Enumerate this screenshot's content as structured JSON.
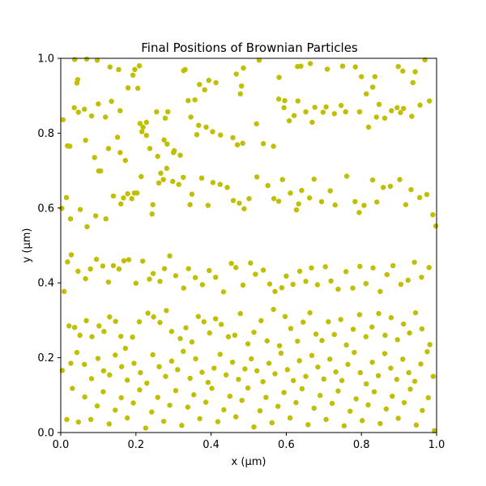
{
  "chart_data": {
    "type": "scatter",
    "title": "Final Positions of Brownian Particles",
    "xlabel": "x (µm)",
    "ylabel": "y (µm)",
    "xlim": [
      0,
      1
    ],
    "ylim": [
      0,
      1
    ],
    "xticks": [
      "0.0",
      "0.2",
      "0.4",
      "0.6",
      "0.8",
      "1.0"
    ],
    "yticks": [
      "0.0",
      "0.2",
      "0.4",
      "0.6",
      "0.8",
      "1.0"
    ],
    "xtick_values": [
      0,
      0.2,
      0.4,
      0.6,
      0.8,
      1.0
    ],
    "ytick_values": [
      0,
      0.2,
      0.4,
      0.6,
      0.8,
      1.0
    ],
    "grid": false,
    "marker_color": "#bfbf00",
    "points": [
      [
        0.006,
        0.836
      ],
      [
        0.037,
        0.997
      ],
      [
        0.043,
        0.934
      ],
      [
        0.045,
        0.943
      ],
      [
        0.069,
        0.998
      ],
      [
        0.097,
        0.995
      ],
      [
        0.131,
        0.977
      ],
      [
        0.154,
        0.97
      ],
      [
        0.192,
        0.955
      ],
      [
        0.197,
        0.97
      ],
      [
        0.209,
        0.98
      ],
      [
        0.036,
        0.868
      ],
      [
        0.047,
        0.856
      ],
      [
        0.063,
        0.864
      ],
      [
        0.082,
        0.846
      ],
      [
        0.1,
        0.878
      ],
      [
        0.119,
        0.843
      ],
      [
        0.135,
        0.885
      ],
      [
        0.158,
        0.86
      ],
      [
        0.179,
        0.921
      ],
      [
        0.205,
        0.92
      ],
      [
        0.211,
        0.826
      ],
      [
        0.228,
        0.829
      ],
      [
        0.255,
        0.857
      ],
      [
        0.278,
        0.84
      ],
      [
        0.285,
        0.857
      ],
      [
        0.327,
        0.967
      ],
      [
        0.331,
        0.97
      ],
      [
        0.369,
        0.93
      ],
      [
        0.383,
        0.916
      ],
      [
        0.394,
        0.941
      ],
      [
        0.413,
        0.935
      ],
      [
        0.467,
        0.958
      ],
      [
        0.486,
        0.974
      ],
      [
        0.481,
        0.926
      ],
      [
        0.478,
        0.905
      ],
      [
        0.528,
        0.995
      ],
      [
        0.581,
        0.949
      ],
      [
        0.58,
        0.891
      ],
      [
        0.596,
        0.887
      ],
      [
        0.63,
        0.978
      ],
      [
        0.639,
        0.979
      ],
      [
        0.664,
        0.986
      ],
      [
        0.709,
        0.971
      ],
      [
        0.75,
        0.979
      ],
      [
        0.784,
        0.977
      ],
      [
        0.8,
        0.951
      ],
      [
        0.813,
        0.905
      ],
      [
        0.83,
        0.923
      ],
      [
        0.836,
        0.951
      ],
      [
        0.898,
        0.978
      ],
      [
        0.91,
        0.966
      ],
      [
        0.969,
        0.996
      ],
      [
        0.943,
        0.964
      ],
      [
        0.937,
        0.935
      ],
      [
        0.018,
        0.766
      ],
      [
        0.024,
        0.765
      ],
      [
        0.066,
        0.781
      ],
      [
        0.09,
        0.735
      ],
      [
        0.101,
        0.699
      ],
      [
        0.106,
        0.699
      ],
      [
        0.127,
        0.759
      ],
      [
        0.151,
        0.789
      ],
      [
        0.158,
        0.748
      ],
      [
        0.172,
        0.727
      ],
      [
        0.216,
        0.804
      ],
      [
        0.219,
        0.816
      ],
      [
        0.228,
        0.794
      ],
      [
        0.237,
        0.759
      ],
      [
        0.258,
        0.738
      ],
      [
        0.275,
        0.782
      ],
      [
        0.283,
        0.771
      ],
      [
        0.3,
        0.748
      ],
      [
        0.302,
        0.753
      ],
      [
        0.318,
        0.741
      ],
      [
        0.339,
        0.887
      ],
      [
        0.357,
        0.889
      ],
      [
        0.346,
        0.843
      ],
      [
        0.362,
        0.796
      ],
      [
        0.367,
        0.821
      ],
      [
        0.387,
        0.816
      ],
      [
        0.404,
        0.804
      ],
      [
        0.425,
        0.795
      ],
      [
        0.458,
        0.788
      ],
      [
        0.47,
        0.769
      ],
      [
        0.484,
        0.773
      ],
      [
        0.521,
        0.825
      ],
      [
        0.539,
        0.772
      ],
      [
        0.566,
        0.765
      ],
      [
        0.608,
        0.833
      ],
      [
        0.594,
        0.868
      ],
      [
        0.621,
        0.847
      ],
      [
        0.631,
        0.886
      ],
      [
        0.652,
        0.857
      ],
      [
        0.669,
        0.829
      ],
      [
        0.676,
        0.869
      ],
      [
        0.698,
        0.856
      ],
      [
        0.706,
        0.87
      ],
      [
        0.728,
        0.852
      ],
      [
        0.746,
        0.874
      ],
      [
        0.758,
        0.857
      ],
      [
        0.795,
        0.857
      ],
      [
        0.819,
        0.816
      ],
      [
        0.84,
        0.843
      ],
      [
        0.847,
        0.877
      ],
      [
        0.862,
        0.84
      ],
      [
        0.88,
        0.86
      ],
      [
        0.895,
        0.868
      ],
      [
        0.904,
        0.855
      ],
      [
        0.912,
        0.866
      ],
      [
        0.934,
        0.845
      ],
      [
        0.956,
        0.875
      ],
      [
        0.981,
        0.886
      ],
      [
        0.003,
        0.599
      ],
      [
        0.015,
        0.628
      ],
      [
        0.026,
        0.571
      ],
      [
        0.052,
        0.596
      ],
      [
        0.07,
        0.55
      ],
      [
        0.093,
        0.579
      ],
      [
        0.12,
        0.571
      ],
      [
        0.14,
        0.632
      ],
      [
        0.16,
        0.611
      ],
      [
        0.167,
        0.627
      ],
      [
        0.178,
        0.638
      ],
      [
        0.189,
        0.625
      ],
      [
        0.196,
        0.64
      ],
      [
        0.203,
        0.64
      ],
      [
        0.214,
        0.684
      ],
      [
        0.243,
        0.584
      ],
      [
        0.245,
        0.609
      ],
      [
        0.261,
        0.667
      ],
      [
        0.266,
        0.693
      ],
      [
        0.273,
        0.676
      ],
      [
        0.282,
        0.706
      ],
      [
        0.298,
        0.671
      ],
      [
        0.314,
        0.663
      ],
      [
        0.326,
        0.682
      ],
      [
        0.344,
        0.609
      ],
      [
        0.349,
        0.637
      ],
      [
        0.375,
        0.68
      ],
      [
        0.392,
        0.607
      ],
      [
        0.405,
        0.668
      ],
      [
        0.424,
        0.663
      ],
      [
        0.443,
        0.655
      ],
      [
        0.459,
        0.62
      ],
      [
        0.475,
        0.613
      ],
      [
        0.488,
        0.598
      ],
      [
        0.501,
        0.625
      ],
      [
        0.522,
        0.683
      ],
      [
        0.551,
        0.66
      ],
      [
        0.567,
        0.625
      ],
      [
        0.58,
        0.618
      ],
      [
        0.59,
        0.676
      ],
      [
        0.611,
        0.64
      ],
      [
        0.627,
        0.595
      ],
      [
        0.633,
        0.611
      ],
      [
        0.641,
        0.647
      ],
      [
        0.662,
        0.627
      ],
      [
        0.674,
        0.677
      ],
      [
        0.694,
        0.617
      ],
      [
        0.717,
        0.646
      ],
      [
        0.73,
        0.608
      ],
      [
        0.761,
        0.685
      ],
      [
        0.783,
        0.617
      ],
      [
        0.794,
        0.588
      ],
      [
        0.807,
        0.607
      ],
      [
        0.83,
        0.675
      ],
      [
        0.841,
        0.616
      ],
      [
        0.858,
        0.655
      ],
      [
        0.877,
        0.658
      ],
      [
        0.902,
        0.676
      ],
      [
        0.918,
        0.609
      ],
      [
        0.932,
        0.649
      ],
      [
        0.955,
        0.628
      ],
      [
        0.974,
        0.636
      ],
      [
        0.99,
        0.582
      ],
      [
        0.998,
        0.552
      ],
      [
        0.009,
        0.377
      ],
      [
        0.018,
        0.456
      ],
      [
        0.028,
        0.475
      ],
      [
        0.046,
        0.431
      ],
      [
        0.066,
        0.411
      ],
      [
        0.079,
        0.437
      ],
      [
        0.095,
        0.463
      ],
      [
        0.112,
        0.445
      ],
      [
        0.127,
        0.402
      ],
      [
        0.14,
        0.446
      ],
      [
        0.155,
        0.437
      ],
      [
        0.168,
        0.459
      ],
      [
        0.181,
        0.462
      ],
      [
        0.2,
        0.399
      ],
      [
        0.218,
        0.458
      ],
      [
        0.236,
        0.41
      ],
      [
        0.246,
        0.425
      ],
      [
        0.264,
        0.404
      ],
      [
        0.276,
        0.438
      ],
      [
        0.29,
        0.472
      ],
      [
        0.306,
        0.419
      ],
      [
        0.327,
        0.386
      ],
      [
        0.34,
        0.438
      ],
      [
        0.358,
        0.414
      ],
      [
        0.377,
        0.395
      ],
      [
        0.395,
        0.433
      ],
      [
        0.412,
        0.415
      ],
      [
        0.433,
        0.376
      ],
      [
        0.454,
        0.452
      ],
      [
        0.466,
        0.441
      ],
      [
        0.485,
        0.394
      ],
      [
        0.505,
        0.453
      ],
      [
        0.518,
        0.423
      ],
      [
        0.539,
        0.434
      ],
      [
        0.556,
        0.397
      ],
      [
        0.57,
        0.377
      ],
      [
        0.588,
        0.387
      ],
      [
        0.6,
        0.418
      ],
      [
        0.618,
        0.396
      ],
      [
        0.636,
        0.431
      ],
      [
        0.652,
        0.404
      ],
      [
        0.667,
        0.44
      ],
      [
        0.683,
        0.395
      ],
      [
        0.704,
        0.443
      ],
      [
        0.719,
        0.405
      ],
      [
        0.738,
        0.383
      ],
      [
        0.759,
        0.43
      ],
      [
        0.777,
        0.386
      ],
      [
        0.796,
        0.444
      ],
      [
        0.812,
        0.398
      ],
      [
        0.831,
        0.44
      ],
      [
        0.85,
        0.377
      ],
      [
        0.868,
        0.422
      ],
      [
        0.884,
        0.446
      ],
      [
        0.905,
        0.396
      ],
      [
        0.924,
        0.407
      ],
      [
        0.941,
        0.455
      ],
      [
        0.96,
        0.415
      ],
      [
        0.98,
        0.441
      ],
      [
        0.022,
        0.285
      ],
      [
        0.037,
        0.281
      ],
      [
        0.051,
        0.26
      ],
      [
        0.068,
        0.299
      ],
      [
        0.083,
        0.256
      ],
      [
        0.102,
        0.285
      ],
      [
        0.115,
        0.27
      ],
      [
        0.13,
        0.309
      ],
      [
        0.146,
        0.297
      ],
      [
        0.16,
        0.257
      ],
      [
        0.172,
        0.225
      ],
      [
        0.191,
        0.255
      ],
      [
        0.209,
        0.296
      ],
      [
        0.232,
        0.319
      ],
      [
        0.247,
        0.309
      ],
      [
        0.264,
        0.294
      ],
      [
        0.281,
        0.326
      ],
      [
        0.295,
        0.27
      ],
      [
        0.318,
        0.251
      ],
      [
        0.333,
        0.28
      ],
      [
        0.349,
        0.242
      ],
      [
        0.366,
        0.31
      ],
      [
        0.381,
        0.296
      ],
      [
        0.396,
        0.266
      ],
      [
        0.412,
        0.304
      ],
      [
        0.427,
        0.289
      ],
      [
        0.446,
        0.256
      ],
      [
        0.463,
        0.26
      ],
      [
        0.478,
        0.318
      ],
      [
        0.498,
        0.237
      ],
      [
        0.514,
        0.268
      ],
      [
        0.533,
        0.299
      ],
      [
        0.549,
        0.245
      ],
      [
        0.566,
        0.329
      ],
      [
        0.582,
        0.232
      ],
      [
        0.597,
        0.31
      ],
      [
        0.612,
        0.278
      ],
      [
        0.63,
        0.244
      ],
      [
        0.645,
        0.295
      ],
      [
        0.663,
        0.32
      ],
      [
        0.679,
        0.263
      ],
      [
        0.695,
        0.246
      ],
      [
        0.712,
        0.296
      ],
      [
        0.728,
        0.262
      ],
      [
        0.745,
        0.302
      ],
      [
        0.76,
        0.234
      ],
      [
        0.778,
        0.276
      ],
      [
        0.795,
        0.315
      ],
      [
        0.812,
        0.256
      ],
      [
        0.828,
        0.282
      ],
      [
        0.846,
        0.318
      ],
      [
        0.863,
        0.26
      ],
      [
        0.879,
        0.307
      ],
      [
        0.896,
        0.248
      ],
      [
        0.912,
        0.29
      ],
      [
        0.928,
        0.266
      ],
      [
        0.944,
        0.32
      ],
      [
        0.961,
        0.277
      ],
      [
        0.982,
        0.235
      ],
      [
        0.004,
        0.166
      ],
      [
        0.027,
        0.185
      ],
      [
        0.043,
        0.214
      ],
      [
        0.063,
        0.182
      ],
      [
        0.082,
        0.144
      ],
      [
        0.099,
        0.198
      ],
      [
        0.114,
        0.165
      ],
      [
        0.13,
        0.154
      ],
      [
        0.145,
        0.207
      ],
      [
        0.162,
        0.176
      ],
      [
        0.177,
        0.14
      ],
      [
        0.195,
        0.185
      ],
      [
        0.212,
        0.16
      ],
      [
        0.229,
        0.132
      ],
      [
        0.245,
        0.208
      ],
      [
        0.262,
        0.176
      ],
      [
        0.279,
        0.15
      ],
      [
        0.295,
        0.191
      ],
      [
        0.311,
        0.168
      ],
      [
        0.326,
        0.217
      ],
      [
        0.344,
        0.145
      ],
      [
        0.359,
        0.197
      ],
      [
        0.376,
        0.161
      ],
      [
        0.392,
        0.134
      ],
      [
        0.408,
        0.172
      ],
      [
        0.424,
        0.209
      ],
      [
        0.44,
        0.154
      ],
      [
        0.457,
        0.188
      ],
      [
        0.473,
        0.142
      ],
      [
        0.49,
        0.17
      ],
      [
        0.507,
        0.197
      ],
      [
        0.522,
        0.165
      ],
      [
        0.538,
        0.136
      ],
      [
        0.554,
        0.185
      ],
      [
        0.57,
        0.157
      ],
      [
        0.586,
        0.212
      ],
      [
        0.603,
        0.168
      ],
      [
        0.619,
        0.139
      ],
      [
        0.635,
        0.192
      ],
      [
        0.652,
        0.15
      ],
      [
        0.668,
        0.206
      ],
      [
        0.684,
        0.175
      ],
      [
        0.7,
        0.143
      ],
      [
        0.716,
        0.196
      ],
      [
        0.732,
        0.162
      ],
      [
        0.748,
        0.139
      ],
      [
        0.764,
        0.182
      ],
      [
        0.781,
        0.214
      ],
      [
        0.797,
        0.16
      ],
      [
        0.813,
        0.13
      ],
      [
        0.829,
        0.188
      ],
      [
        0.845,
        0.152
      ],
      [
        0.862,
        0.211
      ],
      [
        0.878,
        0.172
      ],
      [
        0.894,
        0.142
      ],
      [
        0.91,
        0.196
      ],
      [
        0.926,
        0.16
      ],
      [
        0.942,
        0.137
      ],
      [
        0.958,
        0.183
      ],
      [
        0.975,
        0.216
      ],
      [
        0.991,
        0.15
      ],
      [
        0.016,
        0.035
      ],
      [
        0.031,
        0.118
      ],
      [
        0.047,
        0.028
      ],
      [
        0.064,
        0.095
      ],
      [
        0.08,
        0.035
      ],
      [
        0.097,
        0.071
      ],
      [
        0.113,
        0.109
      ],
      [
        0.129,
        0.023
      ],
      [
        0.145,
        0.06
      ],
      [
        0.161,
        0.093
      ],
      [
        0.177,
        0.039
      ],
      [
        0.193,
        0.079
      ],
      [
        0.21,
        0.114
      ],
      [
        0.226,
        0.012
      ],
      [
        0.242,
        0.055
      ],
      [
        0.258,
        0.094
      ],
      [
        0.274,
        0.03
      ],
      [
        0.29,
        0.073
      ],
      [
        0.306,
        0.112
      ],
      [
        0.322,
        0.019
      ],
      [
        0.338,
        0.068
      ],
      [
        0.354,
        0.101
      ],
      [
        0.37,
        0.037
      ],
      [
        0.386,
        0.081
      ],
      [
        0.402,
        0.118
      ],
      [
        0.418,
        0.029
      ],
      [
        0.434,
        0.061
      ],
      [
        0.45,
        0.097
      ],
      [
        0.466,
        0.042
      ],
      [
        0.482,
        0.086
      ],
      [
        0.498,
        0.119
      ],
      [
        0.514,
        0.015
      ],
      [
        0.53,
        0.058
      ],
      [
        0.546,
        0.094
      ],
      [
        0.562,
        0.026
      ],
      [
        0.578,
        0.07
      ],
      [
        0.594,
        0.107
      ],
      [
        0.61,
        0.039
      ],
      [
        0.626,
        0.08
      ],
      [
        0.642,
        0.117
      ],
      [
        0.658,
        0.021
      ],
      [
        0.674,
        0.065
      ],
      [
        0.69,
        0.099
      ],
      [
        0.706,
        0.035
      ],
      [
        0.722,
        0.078
      ],
      [
        0.738,
        0.111
      ],
      [
        0.754,
        0.018
      ],
      [
        0.77,
        0.057
      ],
      [
        0.786,
        0.09
      ],
      [
        0.802,
        0.032
      ],
      [
        0.818,
        0.074
      ],
      [
        0.834,
        0.109
      ],
      [
        0.85,
        0.024
      ],
      [
        0.866,
        0.063
      ],
      [
        0.882,
        0.097
      ],
      [
        0.898,
        0.038
      ],
      [
        0.914,
        0.08
      ],
      [
        0.93,
        0.116
      ],
      [
        0.946,
        0.02
      ],
      [
        0.962,
        0.059
      ],
      [
        0.978,
        0.093
      ],
      [
        0.994,
        0.005
      ]
    ]
  }
}
